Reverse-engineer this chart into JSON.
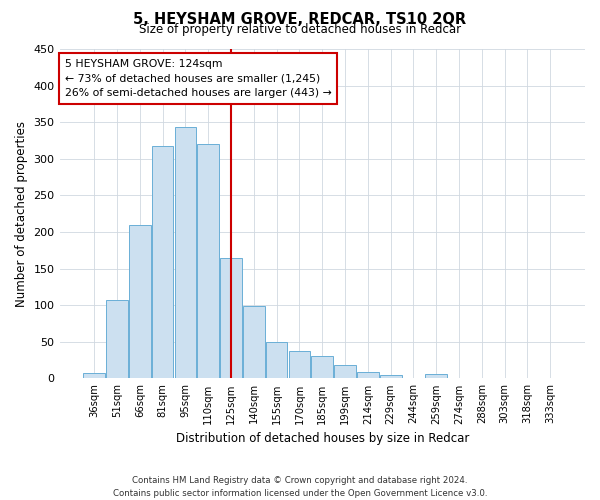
{
  "title": "5, HEYSHAM GROVE, REDCAR, TS10 2QR",
  "subtitle": "Size of property relative to detached houses in Redcar",
  "xlabel": "Distribution of detached houses by size in Redcar",
  "ylabel": "Number of detached properties",
  "bar_labels": [
    "36sqm",
    "51sqm",
    "66sqm",
    "81sqm",
    "95sqm",
    "110sqm",
    "125sqm",
    "140sqm",
    "155sqm",
    "170sqm",
    "185sqm",
    "199sqm",
    "214sqm",
    "229sqm",
    "244sqm",
    "259sqm",
    "274sqm",
    "288sqm",
    "303sqm",
    "318sqm",
    "333sqm"
  ],
  "bar_values": [
    7,
    107,
    210,
    317,
    343,
    320,
    165,
    99,
    50,
    37,
    30,
    18,
    9,
    5,
    0,
    6,
    0,
    0,
    0,
    0,
    0
  ],
  "bar_color": "#cce0f0",
  "bar_edge_color": "#6aafd6",
  "vline_x_index": 6,
  "vline_color": "#cc0000",
  "annotation_line1": "5 HEYSHAM GROVE: 124sqm",
  "annotation_line2": "← 73% of detached houses are smaller (1,245)",
  "annotation_line3": "26% of semi-detached houses are larger (443) →",
  "ylim": [
    0,
    450
  ],
  "yticks": [
    0,
    50,
    100,
    150,
    200,
    250,
    300,
    350,
    400,
    450
  ],
  "footer_line1": "Contains HM Land Registry data © Crown copyright and database right 2024.",
  "footer_line2": "Contains public sector information licensed under the Open Government Licence v3.0.",
  "background_color": "#ffffff",
  "grid_color": "#d0d8e0"
}
